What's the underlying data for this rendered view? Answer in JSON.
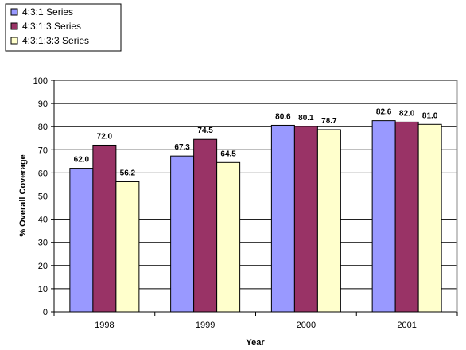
{
  "chart_data": {
    "type": "bar",
    "categories": [
      "1998",
      "1999",
      "2000",
      "2001"
    ],
    "series": [
      {
        "name": "4:3:1 Series",
        "color": "#9999ff",
        "values": [
          62.0,
          67.3,
          80.6,
          82.6
        ],
        "labels": [
          "62.0",
          "67.3",
          "80.6",
          "82.6"
        ]
      },
      {
        "name": "4:3:1:3 Series",
        "color": "#993366",
        "values": [
          72.0,
          74.5,
          80.1,
          82.0
        ],
        "labels": [
          "72.0",
          "74.5",
          "80.1",
          "82.0"
        ]
      },
      {
        "name": "4:3:1:3:3 Series",
        "color": "#ffffcc",
        "values": [
          56.2,
          64.5,
          78.7,
          81.0
        ],
        "labels": [
          "56.2",
          "64.5",
          "78.7",
          "81.0"
        ]
      }
    ],
    "xlabel": "Year",
    "ylabel": "% Overall Coverage",
    "ylim": [
      0,
      100
    ],
    "yticks": [
      0,
      10,
      20,
      30,
      40,
      50,
      60,
      70,
      80,
      90,
      100
    ],
    "grid": true,
    "legend_position": "top-left"
  }
}
